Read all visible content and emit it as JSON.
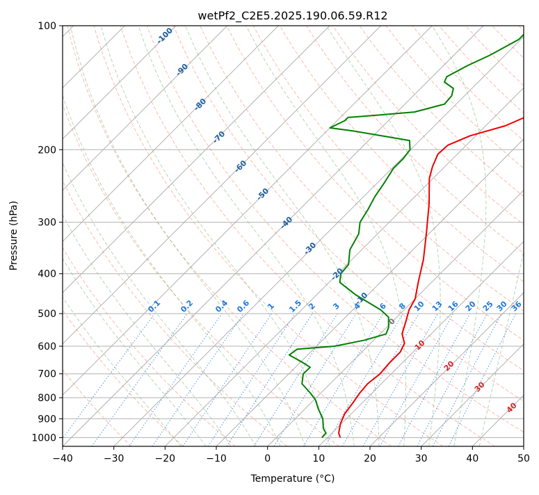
{
  "chart_data": {
    "type": "line",
    "subtype": "skew-T log-P diagram",
    "title": "wetPf2_C2E5.2025.190.06.59.R12",
    "xlabel": "Temperature (°C)",
    "ylabel": "Pressure (hPa)",
    "xlim": [
      -40,
      50
    ],
    "ylim": [
      1050,
      100
    ],
    "y_scale": "log",
    "grid": true,
    "x_ticks": [
      "−40",
      "−30",
      "−20",
      "−10",
      "0",
      "10",
      "20",
      "30",
      "40",
      "50"
    ],
    "y_ticks": [
      "100",
      "200",
      "300",
      "400",
      "500",
      "600",
      "700",
      "800",
      "900",
      "1000"
    ],
    "series": [
      {
        "color": "#ee0000",
        "points": [
          {
            "t": 12.5,
            "p": 1000
          },
          {
            "t": 11.3,
            "p": 975
          },
          {
            "t": 9.8,
            "p": 925
          },
          {
            "t": 8.7,
            "p": 875
          },
          {
            "t": 8.2,
            "p": 825
          },
          {
            "t": 7.6,
            "p": 780
          },
          {
            "t": 7.3,
            "p": 740
          },
          {
            "t": 7.8,
            "p": 700
          },
          {
            "t": 7.5,
            "p": 660
          },
          {
            "t": 7.5,
            "p": 620
          },
          {
            "t": 6.6,
            "p": 590
          },
          {
            "t": 4.3,
            "p": 560
          },
          {
            "t": 2.5,
            "p": 520
          },
          {
            "t": 1.0,
            "p": 490
          },
          {
            "t": 0.0,
            "p": 460
          },
          {
            "t": -2.6,
            "p": 420
          },
          {
            "t": -6.0,
            "p": 370
          },
          {
            "t": -10.5,
            "p": 320
          },
          {
            "t": -15.9,
            "p": 270
          },
          {
            "t": -20.7,
            "p": 235
          },
          {
            "t": -22.4,
            "p": 220
          },
          {
            "t": -23.8,
            "p": 205
          },
          {
            "t": -23.6,
            "p": 195
          },
          {
            "t": -21.1,
            "p": 185
          },
          {
            "t": -16.2,
            "p": 175
          },
          {
            "t": -13.5,
            "p": 165
          },
          {
            "t": -14.9,
            "p": 155
          },
          {
            "t": -17.0,
            "p": 145
          },
          {
            "t": -20.6,
            "p": 130
          },
          {
            "t": -24.5,
            "p": 115
          },
          {
            "t": -28.7,
            "p": 100
          }
        ]
      },
      {
        "color": "#008000",
        "points": [
          {
            "t": 8.9,
            "p": 1000
          },
          {
            "t": 8.8,
            "p": 975
          },
          {
            "t": 7.4,
            "p": 950
          },
          {
            "t": 5.4,
            "p": 900
          },
          {
            "t": 2.5,
            "p": 850
          },
          {
            "t": 0.3,
            "p": 810
          },
          {
            "t": -2.0,
            "p": 780
          },
          {
            "t": -5.5,
            "p": 740
          },
          {
            "t": -7.2,
            "p": 700
          },
          {
            "t": -7.1,
            "p": 675
          },
          {
            "t": -9.8,
            "p": 655
          },
          {
            "t": -13.6,
            "p": 630
          },
          {
            "t": -13.2,
            "p": 610
          },
          {
            "t": -6.5,
            "p": 600
          },
          {
            "t": -1.8,
            "p": 580
          },
          {
            "t": 1.2,
            "p": 560
          },
          {
            "t": 0.4,
            "p": 540
          },
          {
            "t": -1.6,
            "p": 510
          },
          {
            "t": -4.5,
            "p": 490
          },
          {
            "t": -12.4,
            "p": 450
          },
          {
            "t": -17.9,
            "p": 420
          },
          {
            "t": -19.4,
            "p": 400
          },
          {
            "t": -19.7,
            "p": 380
          },
          {
            "t": -22.3,
            "p": 350
          },
          {
            "t": -23.7,
            "p": 320
          },
          {
            "t": -25.7,
            "p": 300
          },
          {
            "t": -26.6,
            "p": 280
          },
          {
            "t": -27.8,
            "p": 260
          },
          {
            "t": -28.7,
            "p": 240
          },
          {
            "t": -29.7,
            "p": 222
          },
          {
            "t": -29.7,
            "p": 210
          },
          {
            "t": -30.1,
            "p": 200
          },
          {
            "t": -32.0,
            "p": 190
          },
          {
            "t": -45.0,
            "p": 180
          },
          {
            "t": -50.0,
            "p": 177
          },
          {
            "t": -48.5,
            "p": 170
          },
          {
            "t": -48.5,
            "p": 167
          },
          {
            "t": -43.4,
            "p": 165
          },
          {
            "t": -36.6,
            "p": 162
          },
          {
            "t": -32.3,
            "p": 155
          },
          {
            "t": -32.5,
            "p": 148
          },
          {
            "t": -33.6,
            "p": 142
          },
          {
            "t": -36.6,
            "p": 137
          },
          {
            "t": -37.2,
            "p": 133
          },
          {
            "t": -35.3,
            "p": 125
          },
          {
            "t": -33.0,
            "p": 118
          },
          {
            "t": -30.4,
            "p": 108
          },
          {
            "t": -30.4,
            "p": 100
          }
        ]
      }
    ],
    "isotherm_labels": [
      "-100",
      "-90",
      "-80",
      "-70",
      "-60",
      "-50",
      "-40",
      "-30",
      "-20",
      "-10"
    ],
    "mixing_ratio_labels": [
      "0.1",
      "0.2",
      "0.4",
      "0.6",
      "1",
      "1.5",
      "2",
      "3",
      "4",
      "6",
      "8",
      "10",
      "13",
      "16",
      "20",
      "25",
      "30",
      "36"
    ],
    "moist_adiabat_labels": [
      "0",
      "10",
      "20",
      "30",
      "40"
    ],
    "colors": {
      "temperature": "#ee0000",
      "dewpoint": "#008000",
      "dry_adiabat": "#fa8064",
      "moist_adiabat": "#78b478",
      "mixing_ratio": "#1e78dc",
      "isotherm_label": "#1f5f9f",
      "moist_label": "#d62728",
      "grid": "#b0b0b0"
    }
  }
}
